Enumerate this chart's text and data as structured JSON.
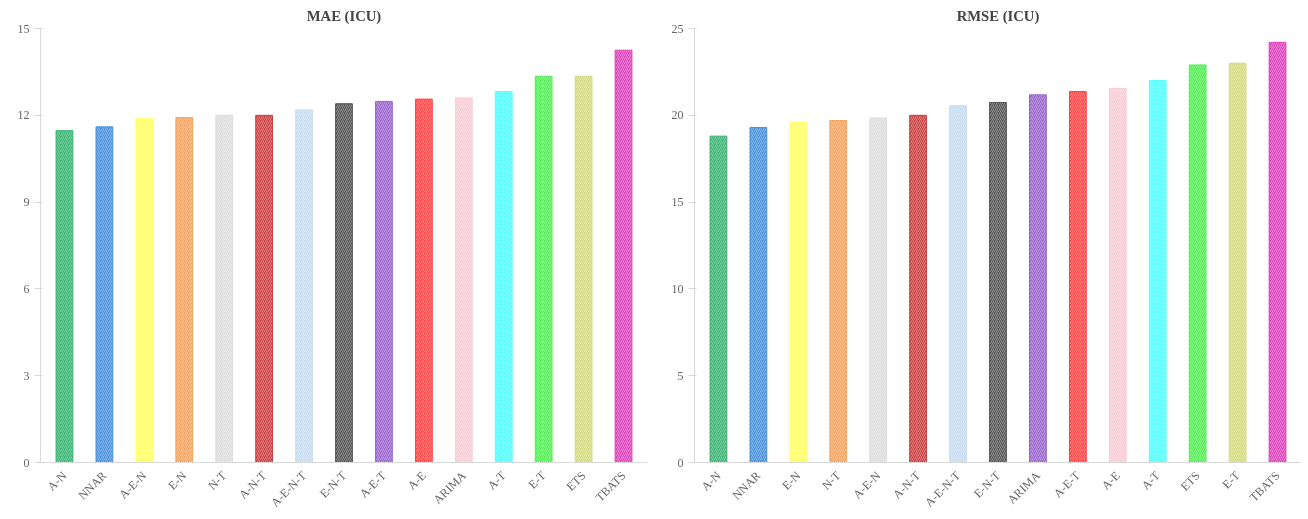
{
  "chart_data": [
    {
      "type": "bar",
      "title": "MAE (ICU)",
      "categories": [
        "A-N",
        "NNAR",
        "A-E-N",
        "E-N",
        "N-T",
        "A-N-T",
        "A-E-N-T",
        "E-N-T",
        "A-E-T",
        "A-E",
        "ARIMA",
        "A-T",
        "E-T",
        "ETS",
        "TBATS"
      ],
      "values": [
        11.47,
        11.6,
        11.88,
        11.92,
        12.0,
        12.0,
        12.18,
        12.4,
        12.48,
        12.56,
        12.6,
        12.82,
        13.35,
        13.35,
        14.25
      ],
      "colors": [
        "#3cb371",
        "#4a90d9",
        "#ffff66",
        "#f4a460",
        "#dddddd",
        "#c84040",
        "#c6dcf0",
        "#555555",
        "#9966cc",
        "#ff4444",
        "#f8cdd5",
        "#55ffff",
        "#55ee55",
        "#d4dc80",
        "#dd44bb"
      ],
      "ylim": [
        0,
        15
      ],
      "yticks": [
        0,
        3,
        6,
        9,
        12,
        15
      ],
      "grid": false
    },
    {
      "type": "bar",
      "title": "RMSE (ICU)",
      "categories": [
        "A-N",
        "NNAR",
        "E-N",
        "N-T",
        "A-E-N",
        "A-N-T",
        "A-E-N-T",
        "E-N-T",
        "ARIMA",
        "A-E-T",
        "A-E",
        "A-T",
        "ETS",
        "E-T",
        "TBATS"
      ],
      "values": [
        18.8,
        19.3,
        19.6,
        19.7,
        19.85,
        20.0,
        20.55,
        20.74,
        21.18,
        21.37,
        21.55,
        22.0,
        22.9,
        23.0,
        24.2
      ],
      "colors": [
        "#3cb371",
        "#4a90d9",
        "#ffff66",
        "#f4a460",
        "#dddddd",
        "#c84040",
        "#c6dcf0",
        "#555555",
        "#9966cc",
        "#ff4444",
        "#f8cdd5",
        "#55ffff",
        "#55ee55",
        "#d4dc80",
        "#dd44bb"
      ],
      "ylim": [
        0,
        25
      ],
      "yticks": [
        0,
        5,
        10,
        15,
        20,
        25
      ],
      "grid": false
    }
  ]
}
